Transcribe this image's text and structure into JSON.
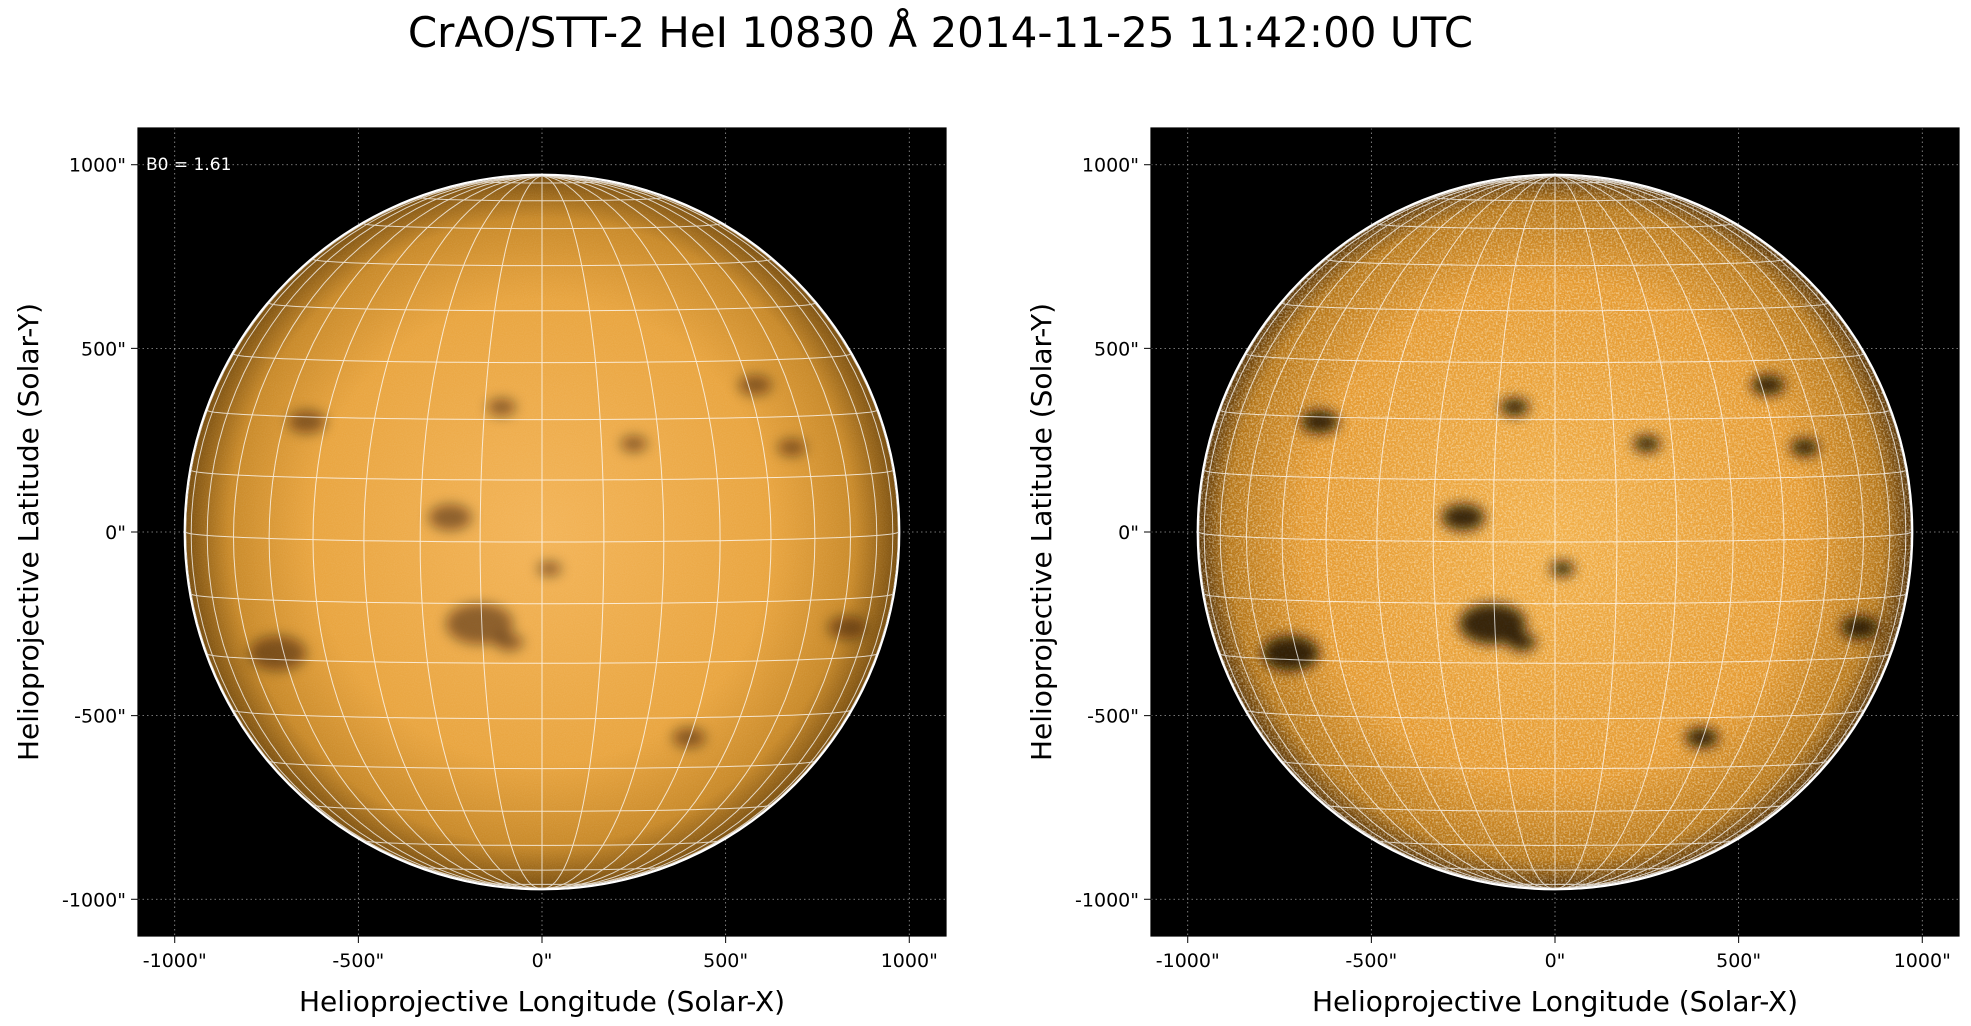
{
  "title": "CrAO/STT-2 HeI 10830 Å 2014-11-25 11:42:00 UTC",
  "annotation": "B0 = 1.61",
  "colors": {
    "background": "#000000",
    "disk_center": "#f0b04e",
    "disk_limb": "#8a5a12",
    "grid": "#ffffff",
    "frame": "#000000"
  },
  "panels": [
    {
      "id": "left",
      "variant": "smooth",
      "xlabel": "Helioprojective Longitude (Solar-X)",
      "ylabel": "Helioprojective Latitude (Solar-Y)",
      "xticks": [
        "-1000\"",
        "-500\"",
        "0\"",
        "500\"",
        "1000\""
      ],
      "yticks": [
        "1000\"",
        "500\"",
        "0\"",
        "-500\"",
        "-1000\""
      ],
      "tick_values": [
        -1000,
        -500,
        0,
        500,
        1000
      ],
      "range_arcsec": [
        -1100,
        1100
      ],
      "solar_radius_arcsec": 970
    },
    {
      "id": "right",
      "variant": "contrast",
      "xlabel": "Helioprojective Longitude (Solar-X)",
      "ylabel": "Helioprojective Latitude (Solar-Y)",
      "xticks": [
        "-1000\"",
        "-500\"",
        "0\"",
        "500\"",
        "1000\""
      ],
      "yticks": [
        "1000\"",
        "500\"",
        "0\"",
        "-500\"",
        "-1000\""
      ],
      "tick_values": [
        -1000,
        -500,
        0,
        500,
        1000
      ],
      "range_arcsec": [
        -1100,
        1100
      ],
      "solar_radius_arcsec": 970
    }
  ],
  "dark_features": [
    {
      "x": -640,
      "y": 300,
      "r": 40
    },
    {
      "x": -250,
      "y": 40,
      "r": 45
    },
    {
      "x": -170,
      "y": -250,
      "r": 70
    },
    {
      "x": -720,
      "y": -330,
      "r": 60
    },
    {
      "x": 580,
      "y": 400,
      "r": 35
    },
    {
      "x": 680,
      "y": 230,
      "r": 30
    },
    {
      "x": 830,
      "y": -260,
      "r": 40
    },
    {
      "x": 400,
      "y": -560,
      "r": 35
    },
    {
      "x": -90,
      "y": -300,
      "r": 30
    },
    {
      "x": 20,
      "y": -100,
      "r": 25
    },
    {
      "x": -110,
      "y": 340,
      "r": 30
    },
    {
      "x": 250,
      "y": 240,
      "r": 28
    }
  ]
}
